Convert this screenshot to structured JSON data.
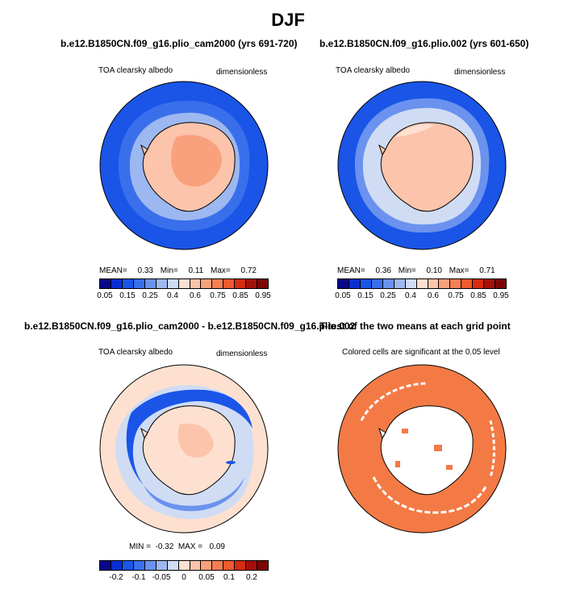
{
  "title": "DJF",
  "panels": [
    {
      "title": "b.e12.B1850CN.f09_g16.plio_cam2000 (yrs 691-720)",
      "left_label": "TOA clearsky albedo",
      "right_label": "dimensionless",
      "stats": {
        "mean_label": "MEAN=",
        "mean": "0.33",
        "min_label": "Min=",
        "min": "0.11",
        "max_label": "Max=",
        "max": "0.72"
      }
    },
    {
      "title": "b.e12.B1850CN.f09_g16.plio.002 (yrs 601-650)",
      "left_label": "TOA clearsky albedo",
      "right_label": "dimensionless",
      "stats": {
        "mean_label": "MEAN=",
        "mean": "0.36",
        "min_label": "Min=",
        "min": "0.10",
        "max_label": "Max=",
        "max": "0.71"
      }
    },
    {
      "title": "b.e12.B1850CN.f09_g16.plio_cam2000 - b.e12.B1850CN.f09_g16.plio.002",
      "left_label": "TOA clearsky albedo",
      "right_label": "dimensionless",
      "stats_text": "MIN =  -0.32  MAX =   0.09"
    },
    {
      "title": "T-test of the two means at each grid point",
      "subtitle": "Colored cells are significant at the 0.05 level"
    }
  ],
  "colorbar_abs": {
    "colors": [
      "#08088a",
      "#0a2ed1",
      "#1a55e8",
      "#3a6fec",
      "#6a92ee",
      "#9db8f0",
      "#cfdcf4",
      "#fde0d0",
      "#fbc4ab",
      "#f9a07c",
      "#f57e55",
      "#ef5a2e",
      "#d42c12",
      "#a50f0a",
      "#7a0606"
    ],
    "labels": [
      "0.05",
      "0.15",
      "0.25",
      "0.4",
      "0.6",
      "0.75",
      "0.85",
      "0.95"
    ]
  },
  "colorbar_diff": {
    "colors": [
      "#08088a",
      "#0a2ed1",
      "#1a55e8",
      "#3a6fec",
      "#6a92ee",
      "#9db8f0",
      "#cfdcf4",
      "#fde0d0",
      "#fbc4ab",
      "#f9a07c",
      "#f57e55",
      "#ef5a2e",
      "#d42c12",
      "#a50f0a",
      "#7a0606"
    ],
    "labels": [
      "-0.2",
      "-0.1",
      "-0.05",
      "0",
      "0.05",
      "0.1",
      "0.2"
    ]
  },
  "ttest_color": "#f47a45"
}
